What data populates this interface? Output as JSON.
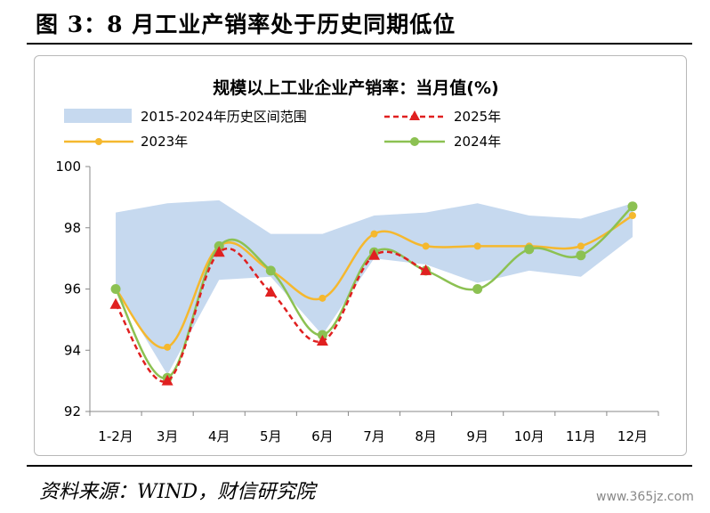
{
  "figure": {
    "title": "图 3：8 月工业产销率处于历史同期低位",
    "source": "资料来源：WIND，财信研究院",
    "watermark": "www.365jz.com"
  },
  "chart_data": {
    "type": "line",
    "title": "规模以上工业企业产销率：当月值(%)",
    "categories": [
      "1-2月",
      "3月",
      "4月",
      "5月",
      "6月",
      "7月",
      "8月",
      "9月",
      "10月",
      "11月",
      "12月"
    ],
    "ylim": [
      92,
      100
    ],
    "yticks": [
      "92",
      "94",
      "96",
      "98",
      "100"
    ],
    "grid": false,
    "legend_position": "top",
    "band": {
      "name": "2015-2024年历史区间范围",
      "color": "#c6d9ef",
      "upper": [
        98.5,
        98.8,
        98.9,
        97.8,
        97.8,
        98.4,
        98.5,
        98.8,
        98.4,
        98.3,
        98.8
      ],
      "lower": [
        96.0,
        93.2,
        96.3,
        96.4,
        94.5,
        97.0,
        96.8,
        96.2,
        96.6,
        96.4,
        97.7
      ]
    },
    "series": [
      {
        "name": "2025年",
        "color": "#e02020",
        "style": "dashed",
        "marker": "triangle",
        "values": [
          95.5,
          93.0,
          97.2,
          95.9,
          94.3,
          97.1,
          96.6,
          null,
          null,
          null,
          null
        ]
      },
      {
        "name": "2023年",
        "color": "#f5b82e",
        "style": "solid",
        "marker": "circle",
        "values": [
          96.0,
          94.1,
          97.4,
          96.6,
          95.7,
          97.8,
          97.4,
          97.4,
          97.4,
          97.4,
          98.4
        ]
      },
      {
        "name": "2024年",
        "color": "#8cc152",
        "style": "solid",
        "marker": "circle",
        "values": [
          96.0,
          93.1,
          97.4,
          96.6,
          94.5,
          97.2,
          96.6,
          96.0,
          97.3,
          97.1,
          98.7
        ]
      }
    ]
  }
}
